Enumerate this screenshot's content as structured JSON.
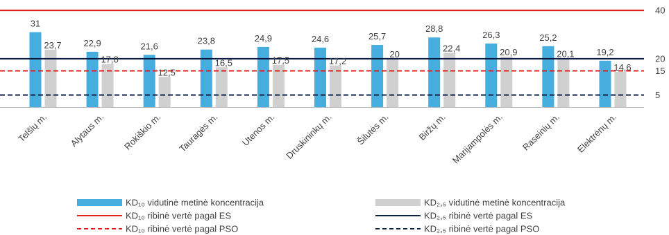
{
  "chart_data": {
    "type": "bar",
    "categories": [
      "Telšių m.",
      "Alytaus m.",
      "Rokiškio m.",
      "Tauragės m.",
      "Utenos m.",
      "Druskininkų m.",
      "Šilutės m.",
      "Biržų m.",
      "Marijampolės m.",
      "Raseinių m.",
      "Elektrėnų m."
    ],
    "series": [
      {
        "name": "KD₁₀ vidutinė metinė koncentracija",
        "color": "#45aede",
        "values": [
          31,
          22.9,
          21.6,
          23.8,
          24.9,
          24.6,
          25.7,
          28.8,
          26.3,
          25.2,
          19.2
        ],
        "labels": [
          "31",
          "22,9",
          "21,6",
          "23,8",
          "24,9",
          "24,6",
          "25,7",
          "28,8",
          "26,3",
          "25,2",
          "19,2"
        ]
      },
      {
        "name": "KD₂,₅ vidutinė metinė koncentracija",
        "color": "#d0d0d0",
        "values": [
          23.7,
          17.8,
          12.5,
          16.5,
          17.5,
          17.2,
          20,
          22.4,
          20.9,
          20.1,
          14.6
        ],
        "labels": [
          "23,7",
          "17,8",
          "12,5",
          "16,5",
          "17,5",
          "17,2",
          "20",
          "22,4",
          "20,9",
          "20,1",
          "14,6"
        ]
      }
    ],
    "reference_lines": [
      {
        "name": "KD₁₀ ribinė vertė pagal ES",
        "value": 40,
        "color": "#e02020",
        "style": "solid"
      },
      {
        "name": "KD₂,₅ ribinė vertė pagal ES",
        "value": 20,
        "color": "#0d1f44",
        "style": "solid"
      },
      {
        "name": "KD₁₀ ribinė vertė pagal PSO",
        "value": 15,
        "color": "#e02020",
        "style": "dashed"
      },
      {
        "name": "KD₂,₅ ribinė vertė pagal PSO",
        "value": 5,
        "color": "#0d1f44",
        "style": "dashed"
      }
    ],
    "y_ticks": [
      {
        "value": 40,
        "label": "40"
      },
      {
        "value": 20,
        "label": "20"
      },
      {
        "value": 15,
        "label": "15"
      },
      {
        "value": 5,
        "label": "5"
      }
    ],
    "ylim": [
      0,
      40
    ],
    "title": "",
    "xlabel": "",
    "ylabel": "",
    "grid": false,
    "legend_position": "bottom"
  }
}
